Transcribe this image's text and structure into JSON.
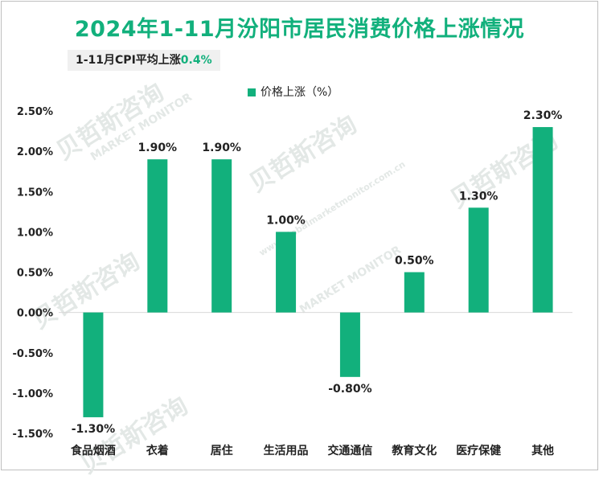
{
  "title": "2024年1-11月汾阳市居民消费价格上涨情况",
  "subtitle": {
    "prefix": "1-11月CPI平均上涨",
    "value": "0.4%"
  },
  "colors": {
    "accent": "#12b07c",
    "bar": "#12b07c",
    "axis": "#d9d9d9",
    "text": "#222222"
  },
  "chart_data": {
    "type": "bar",
    "title": "2024年1-11月汾阳市居民消费价格上涨情况",
    "xlabel": "",
    "ylabel": "",
    "legend": {
      "entries": [
        "价格上涨（%）"
      ],
      "position": "top-center"
    },
    "categories": [
      "食品烟酒",
      "衣着",
      "居住",
      "生活用品",
      "交通通信",
      "教育文化",
      "医疗保健",
      "其他"
    ],
    "series": [
      {
        "name": "价格上涨（%）",
        "values": [
          -1.3,
          1.9,
          1.9,
          1.0,
          -0.8,
          0.5,
          1.3,
          2.3
        ]
      }
    ],
    "data_labels": [
      "-1.30%",
      "1.90%",
      "1.90%",
      "1.00%",
      "-0.80%",
      "0.50%",
      "1.30%",
      "2.30%"
    ],
    "ylim": [
      -1.5,
      2.5
    ],
    "yticks": [
      2.5,
      2.0,
      1.5,
      1.0,
      0.5,
      0.0,
      -0.5,
      -1.0,
      -1.5
    ],
    "ytick_labels": [
      "2.50%",
      "2.00%",
      "1.50%",
      "1.00%",
      "0.50%",
      "0.00%",
      "-0.50%",
      "-1.00%",
      "-1.50%"
    ],
    "grid": false
  },
  "watermark": {
    "brand": "贝哲斯咨询",
    "en": "MARKET MONITOR",
    "url": "www.globalmarketmonitor.com.cn"
  }
}
